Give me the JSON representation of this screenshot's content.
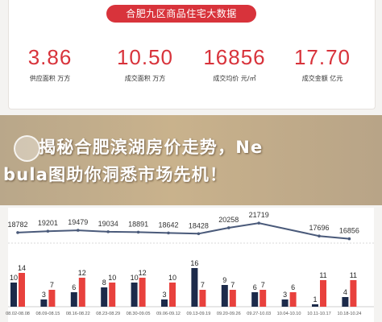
{
  "header": {
    "title": "合肥九区商品住宅大数据"
  },
  "stats": [
    {
      "value": "3.86",
      "label": "供应面积 万方"
    },
    {
      "value": "10.50",
      "label": "成交面积 万方"
    },
    {
      "value": "16856",
      "label": "成交均价 元/㎡"
    },
    {
      "value": "17.70",
      "label": "成交金额 亿元"
    }
  ],
  "banner": {
    "line1": "揭秘合肥滨湖房价走势，Ne",
    "line2": "bula图助你洞悉市场先机！"
  },
  "colors": {
    "accent": "#d8333b",
    "supply_bar": "#1c2a4a",
    "deal_bar": "#e8413d",
    "line": "#4a5a7a"
  },
  "chart_data": [
    {
      "type": "line",
      "categories": [
        "08.02-08.08",
        "08.09-08.15",
        "08.16-08.22",
        "08.23-08.29",
        "08.30-09.05",
        "09.06-09.12",
        "09.13-09.19",
        "09.20-09.26",
        "09.27-10.03",
        "10.04-10.10",
        "10.11-10.17",
        "10.18-10.24"
      ],
      "series": [
        {
          "values": [
            18782,
            19201,
            19479,
            19034,
            18891,
            18642,
            18428,
            20258,
            21719,
            null,
            17696,
            16856
          ]
        }
      ],
      "data_labels": [
        "18782",
        "19201",
        "19479",
        "19034",
        "18891",
        "18642",
        "18428",
        "20258",
        "21719",
        "",
        "17696",
        "16856"
      ],
      "ylim": [
        16000,
        22500
      ]
    },
    {
      "type": "bar",
      "categories": [
        "08.02-08.08",
        "08.09-08.15",
        "08.16-08.22",
        "08.23-08.29",
        "08.30-09.05",
        "09.06-09.12",
        "09.13-09.19",
        "09.20-09.26",
        "09.27-10.03",
        "10.04-10.10",
        "10.11-10.17",
        "10.18-10.24"
      ],
      "series": [
        {
          "values": [
            10,
            3,
            6,
            8,
            10,
            3,
            16,
            9,
            6,
            3,
            1,
            4
          ]
        },
        {
          "values": [
            14,
            7,
            12,
            10,
            12,
            10,
            7,
            7,
            7,
            6,
            11,
            11
          ]
        }
      ],
      "tick_labels": [
        "08.02-08.08",
        "08.09-08.15",
        "08.16-08.22",
        "08.23-08.29",
        "08.30-09.05",
        "09.06-09.12",
        "09.13-09.19",
        "09.20-09.26",
        "09.27-10.03",
        "10.04-10.10",
        "10.11-10.17",
        "10.18-10.24"
      ],
      "ylim": [
        0,
        16
      ]
    }
  ]
}
